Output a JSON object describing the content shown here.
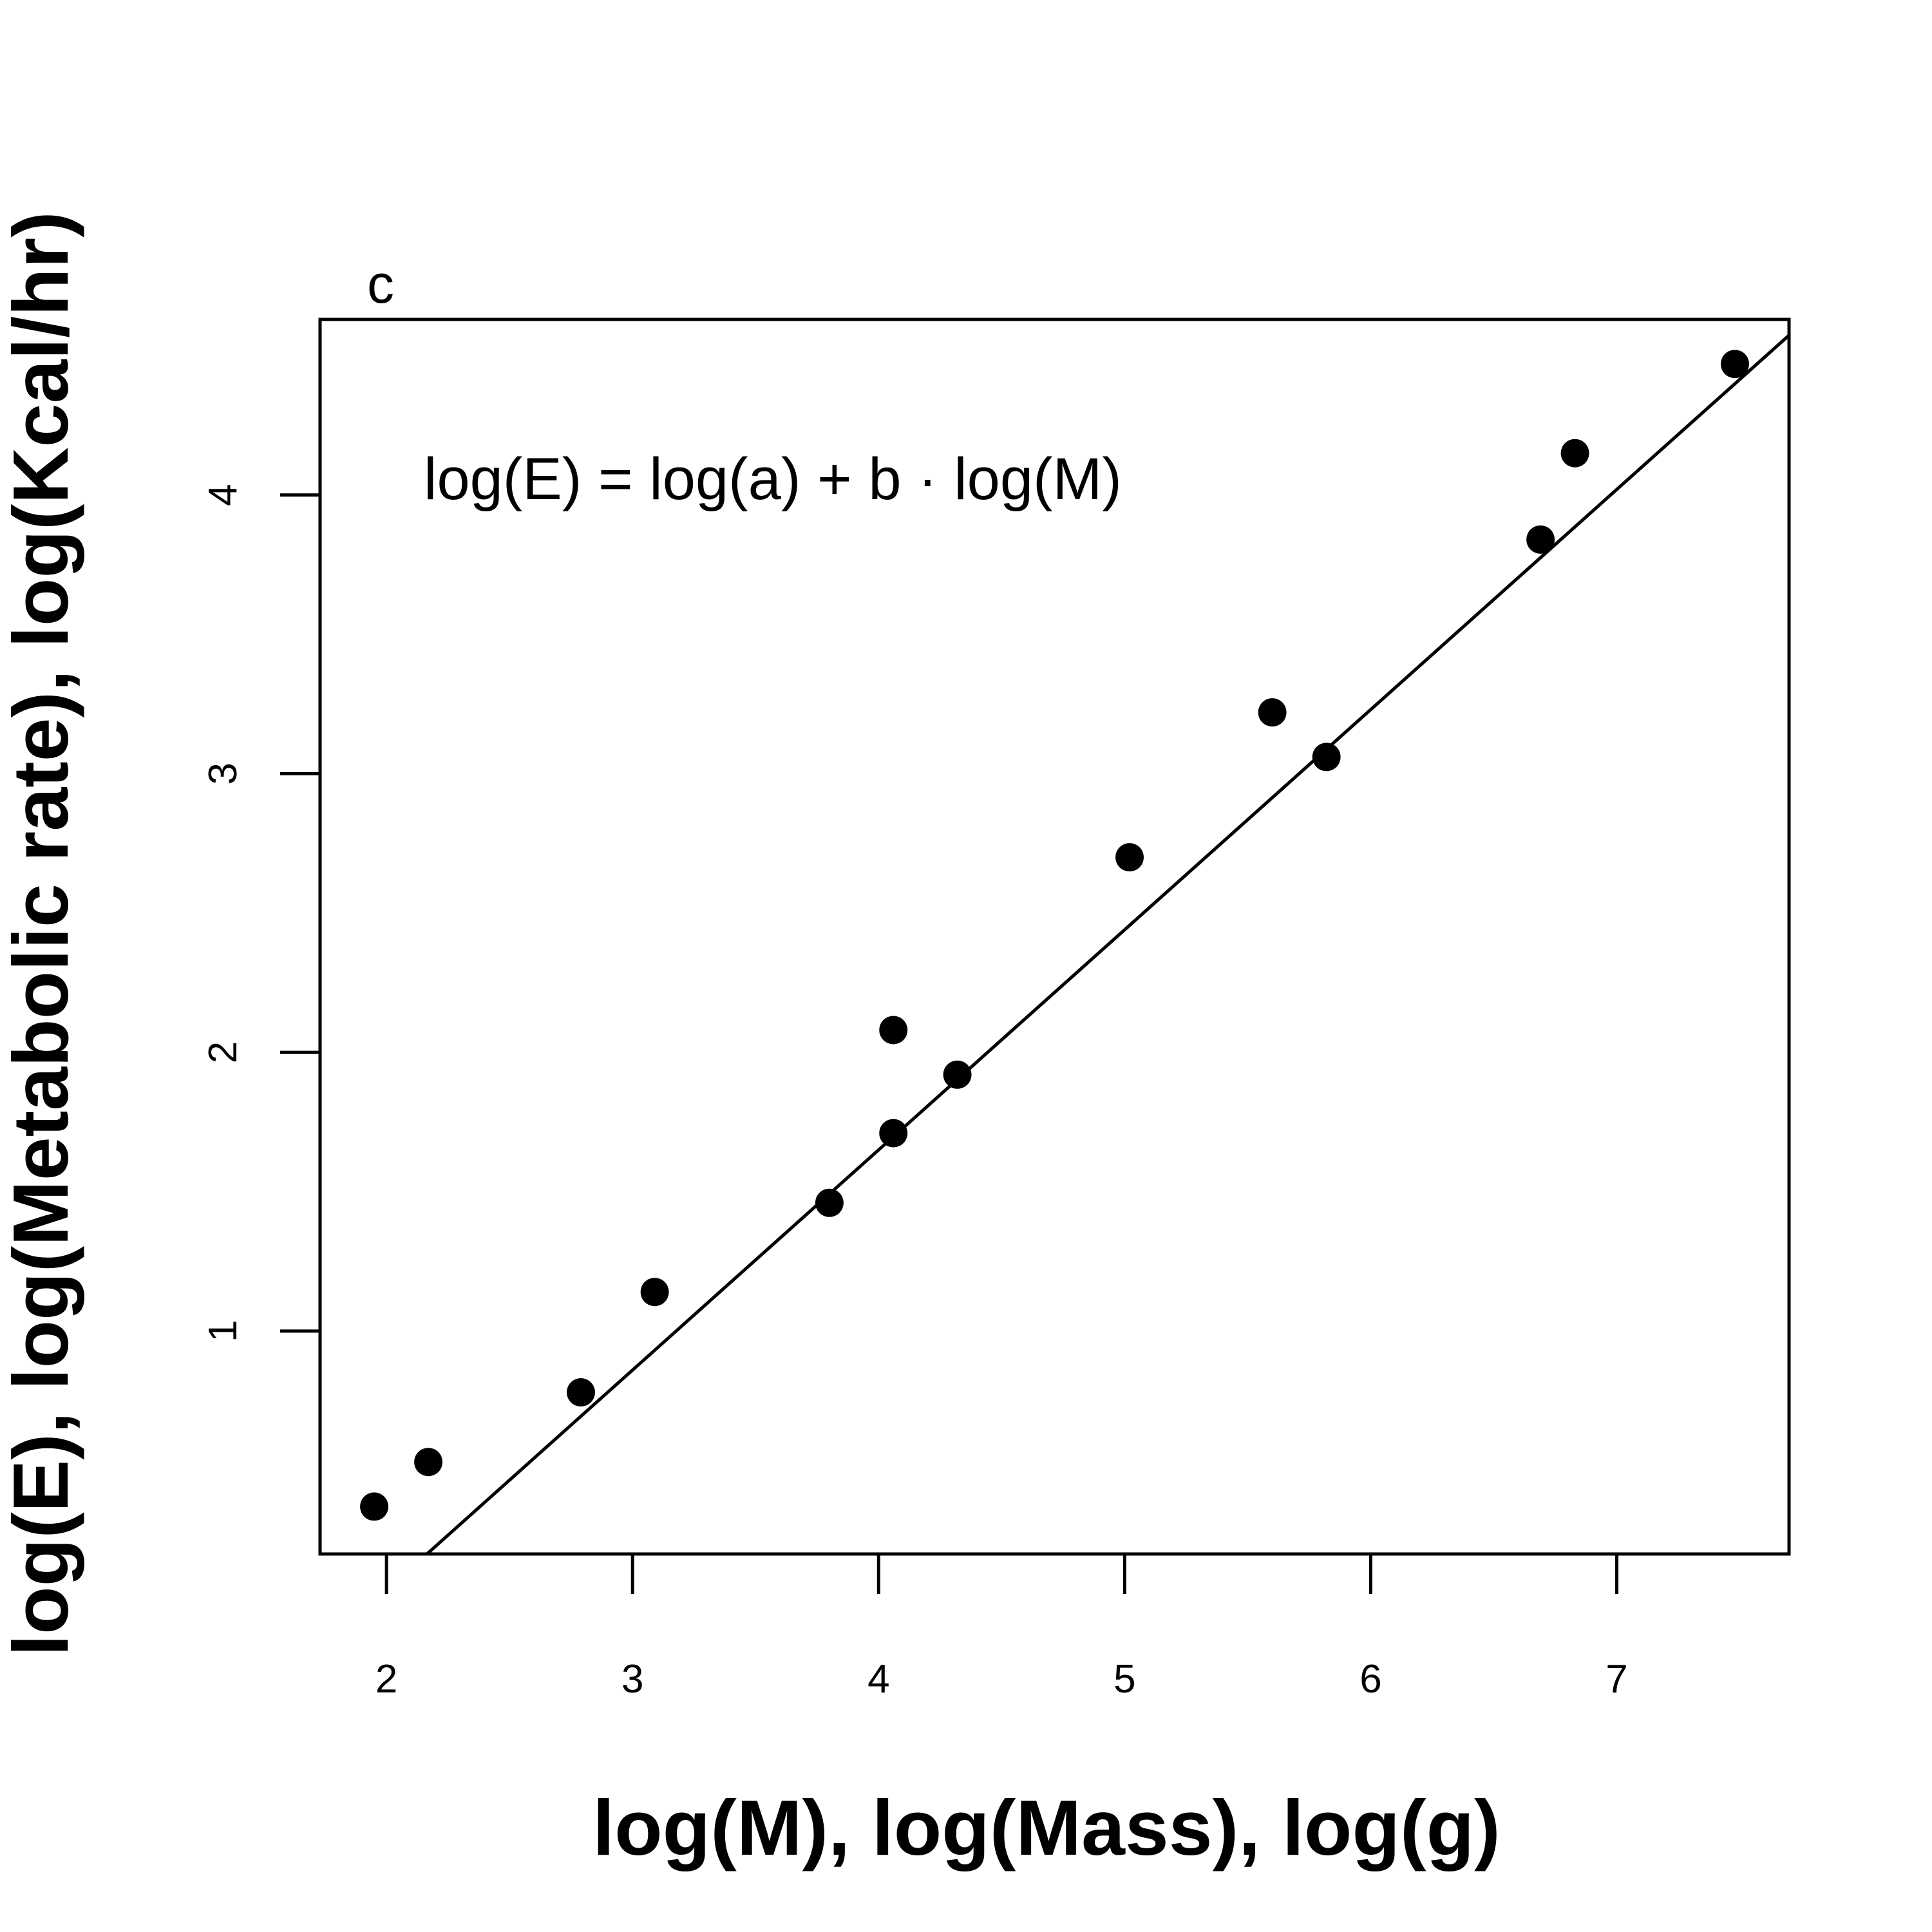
{
  "chart_data": {
    "type": "scatter",
    "panel_label": "c",
    "annotation": "log(E) = log(a) + b · log(M)",
    "xlabel": "log(M), log(Mass), log(g)",
    "ylabel": "log(E), log(Metabolic rate), log(Kcal/hr)",
    "xlim": [
      1.73,
      7.7
    ],
    "ylim": [
      0.2,
      4.63
    ],
    "xticks": [
      2,
      3,
      4,
      5,
      6,
      7
    ],
    "yticks": [
      1,
      2,
      3,
      4
    ],
    "grid": false,
    "points": [
      {
        "x": 1.95,
        "y": 0.37
      },
      {
        "x": 2.17,
        "y": 0.53
      },
      {
        "x": 2.79,
        "y": 0.78
      },
      {
        "x": 3.09,
        "y": 1.14
      },
      {
        "x": 3.8,
        "y": 1.46
      },
      {
        "x": 4.06,
        "y": 2.08
      },
      {
        "x": 4.06,
        "y": 1.71
      },
      {
        "x": 4.32,
        "y": 1.92
      },
      {
        "x": 5.02,
        "y": 2.7
      },
      {
        "x": 5.6,
        "y": 3.22
      },
      {
        "x": 5.82,
        "y": 3.06
      },
      {
        "x": 6.69,
        "y": 3.84
      },
      {
        "x": 6.83,
        "y": 4.15
      },
      {
        "x": 7.48,
        "y": 4.47
      }
    ],
    "fit_line": {
      "intercept": -1.51,
      "slope": 0.79
    }
  }
}
